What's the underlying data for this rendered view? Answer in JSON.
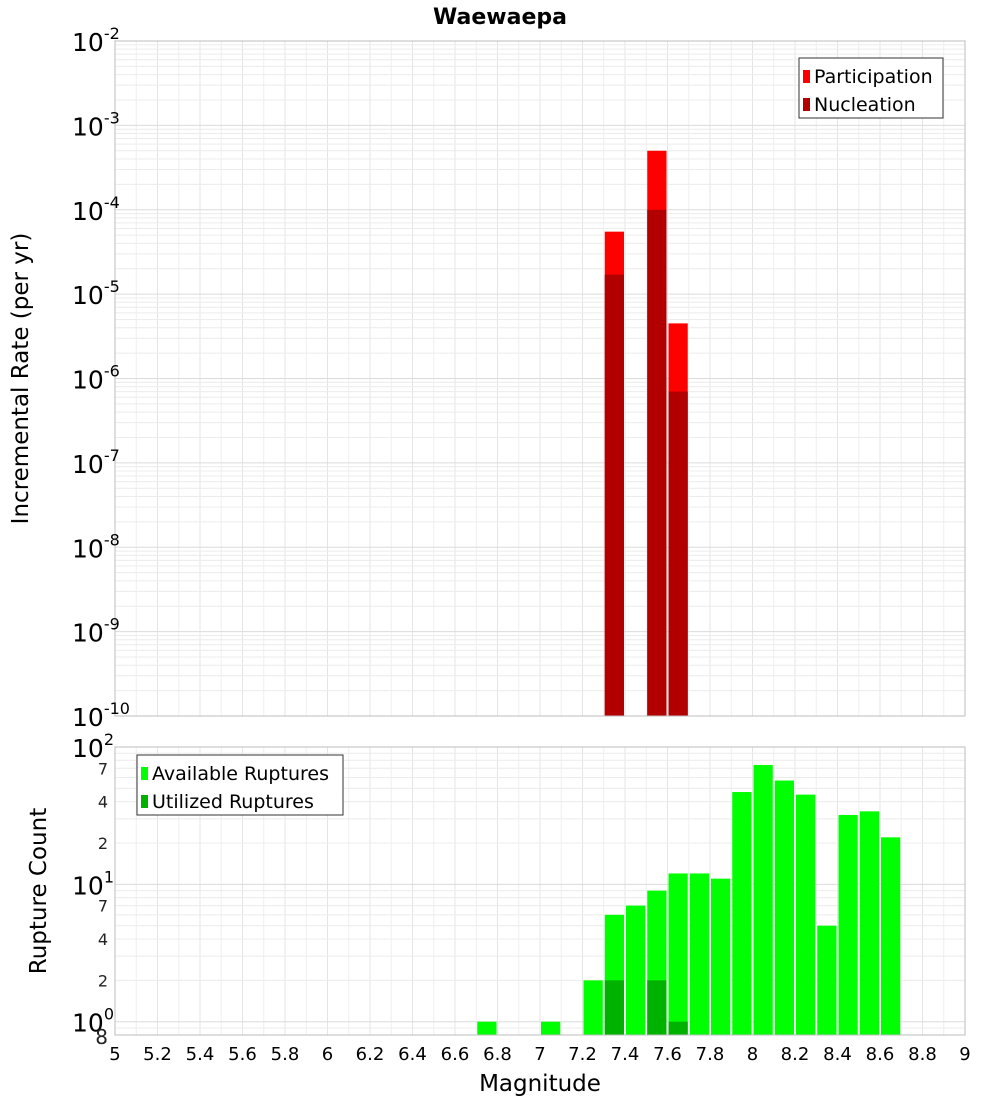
{
  "chart_data": [
    {
      "type": "bar",
      "title": "Waewaepa",
      "xlabel": "",
      "ylabel": "Incremental Rate (per yr)",
      "y_scale": "log",
      "ylim": [
        1e-10,
        0.01
      ],
      "xlim": [
        5,
        9
      ],
      "grid": true,
      "legend_position": "top-right",
      "y_tick_labels": [
        {
          "value": 1e-10,
          "base": "10",
          "exp": "-10"
        },
        {
          "value": 1e-09,
          "base": "10",
          "exp": "-9"
        },
        {
          "value": 1e-08,
          "base": "10",
          "exp": "-8"
        },
        {
          "value": 1e-07,
          "base": "10",
          "exp": "-7"
        },
        {
          "value": 1e-06,
          "base": "10",
          "exp": "-6"
        },
        {
          "value": 1e-05,
          "base": "10",
          "exp": "-5"
        },
        {
          "value": 0.0001,
          "base": "10",
          "exp": "-4"
        },
        {
          "value": 0.001,
          "base": "10",
          "exp": "-3"
        },
        {
          "value": 0.01,
          "base": "10",
          "exp": "-2"
        }
      ],
      "series": [
        {
          "name": "Participation",
          "color": "#ff0000",
          "x": [
            7.35,
            7.55,
            7.65
          ],
          "values": [
            5.5e-05,
            0.0005,
            4.5e-06
          ]
        },
        {
          "name": "Nucleation",
          "color": "#b20000",
          "x": [
            7.35,
            7.55,
            7.65
          ],
          "values": [
            1.7e-05,
            0.0001,
            7e-07
          ]
        }
      ]
    },
    {
      "type": "bar",
      "title": "",
      "xlabel": "Magnitude",
      "ylabel": "Rupture Count",
      "y_scale": "log",
      "ylim": [
        0.8,
        100
      ],
      "xlim": [
        5,
        9
      ],
      "grid": true,
      "legend_position": "top-left",
      "x_ticks": [
        "5",
        "5.2",
        "5.4",
        "5.6",
        "5.8",
        "6",
        "6.2",
        "6.4",
        "6.6",
        "6.8",
        "7",
        "7.2",
        "7.4",
        "7.6",
        "7.8",
        "8",
        "8.2",
        "8.4",
        "8.6",
        "8.8",
        "9"
      ],
      "y_tick_labels": [
        {
          "value": 1,
          "base": "10",
          "exp": "0"
        },
        {
          "value": 10,
          "base": "10",
          "exp": "1"
        },
        {
          "value": 100,
          "base": "10",
          "exp": "2"
        }
      ],
      "y_minor_labels": [
        {
          "value": 0.8,
          "label": "8"
        },
        {
          "value": 2,
          "label": "2"
        },
        {
          "value": 4,
          "label": "4"
        },
        {
          "value": 7,
          "label": "7"
        },
        {
          "value": 20,
          "label": "2"
        },
        {
          "value": 40,
          "label": "4"
        },
        {
          "value": 70,
          "label": "7"
        }
      ],
      "series": [
        {
          "name": "Available Ruptures",
          "color": "#00ff00",
          "x": [
            6.75,
            7.05,
            7.25,
            7.35,
            7.45,
            7.55,
            7.65,
            7.75,
            7.85,
            7.95,
            8.05,
            8.15,
            8.25,
            8.35,
            8.45,
            8.55,
            8.65
          ],
          "values": [
            1,
            1,
            2,
            6,
            7,
            9,
            12,
            12,
            11,
            47,
            74,
            57,
            45,
            5,
            32,
            34,
            22
          ]
        },
        {
          "name": "Utilized Ruptures",
          "color": "#00b200",
          "x": [
            7.35,
            7.55,
            7.65
          ],
          "values": [
            2,
            2,
            1
          ]
        }
      ]
    }
  ]
}
